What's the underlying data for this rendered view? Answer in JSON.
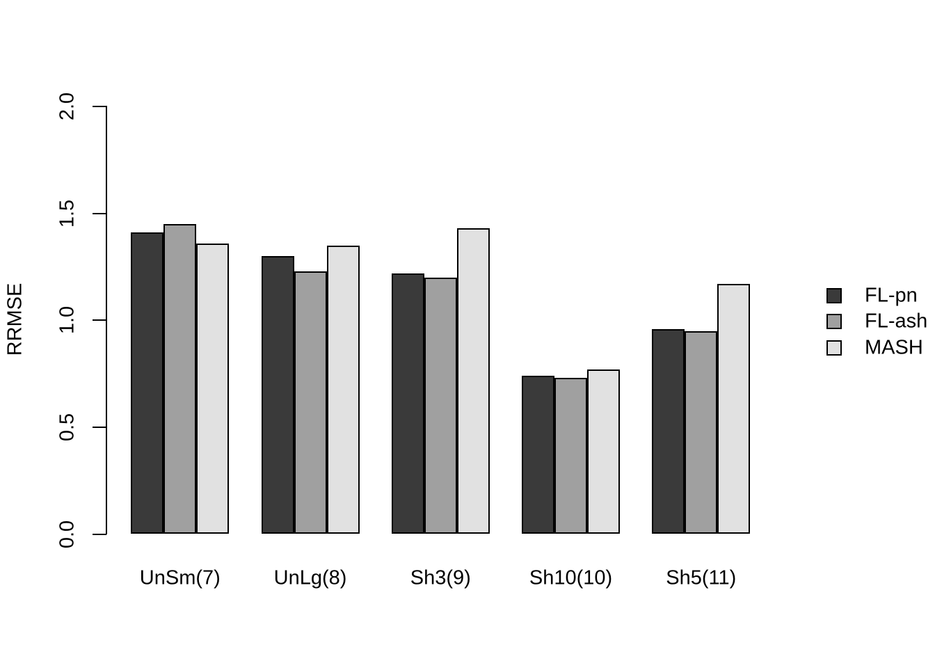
{
  "chart_data": {
    "type": "bar",
    "title": "",
    "xlabel": "",
    "ylabel": "RRMSE",
    "ylim": [
      0.0,
      2.0
    ],
    "yticks": [
      0.0,
      0.5,
      1.0,
      1.5,
      2.0
    ],
    "ytick_labels": [
      "0.0",
      "0.5",
      "1.0",
      "1.5",
      "2.0"
    ],
    "categories": [
      "UnSm(7)",
      "UnLg(8)",
      "Sh3(9)",
      "Sh10(10)",
      "Sh5(11)"
    ],
    "series": [
      {
        "name": "FL-pn",
        "color": "#3a3a3a",
        "values": [
          1.41,
          1.3,
          1.22,
          0.74,
          0.96
        ]
      },
      {
        "name": "FL-ash",
        "color": "#a0a0a0",
        "values": [
          1.45,
          1.23,
          1.2,
          0.73,
          0.95
        ]
      },
      {
        "name": "MASH",
        "color": "#e1e1e1",
        "values": [
          1.36,
          1.35,
          1.43,
          0.77,
          1.17
        ]
      }
    ],
    "legend_position": "right",
    "grid": false,
    "bar_border_color": "#000000",
    "background": "#ffffff"
  }
}
